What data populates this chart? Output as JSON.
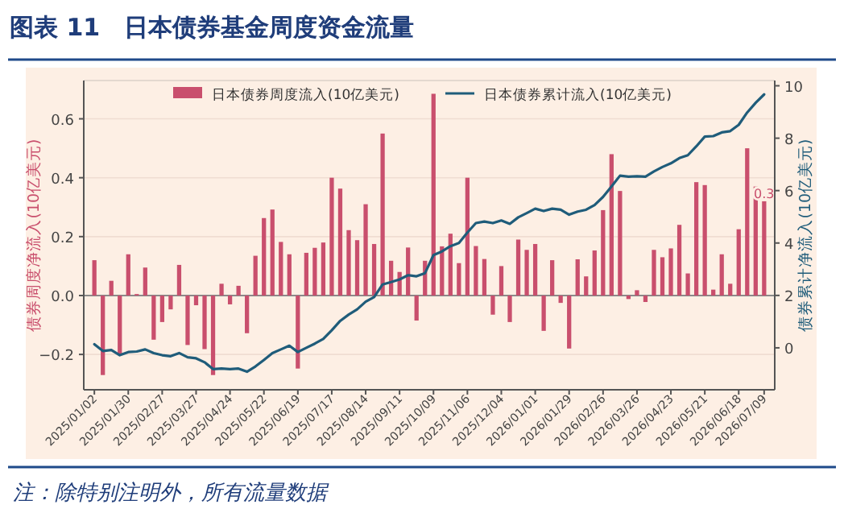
{
  "chart_data": {
    "type": "bar",
    "title": "图表 11　日本债券基金周度资金流量",
    "categories": [
      "2025/01/02",
      null,
      null,
      null,
      "2025/01/30",
      null,
      null,
      null,
      "2025/02/27",
      null,
      null,
      null,
      "2025/03/27",
      null,
      null,
      null,
      "2025/04/24",
      null,
      null,
      null,
      "2025/05/22",
      null,
      null,
      null,
      "2025/06/19",
      null,
      null,
      null,
      "2025/07/17",
      null,
      null,
      null,
      "2025/08/14",
      null,
      null,
      null,
      "2025/09/11",
      null,
      null,
      null,
      "2025/10/09",
      null,
      null,
      null,
      "2025/11/06",
      null,
      null,
      null,
      "2025/12/04",
      null,
      null,
      null,
      "2026/01/01",
      null,
      null,
      null,
      "2026/01/29",
      null,
      null,
      null,
      "2026/02/26",
      null,
      null,
      null,
      "2026/03/26",
      null,
      null,
      null,
      "2026/04/23",
      null,
      null,
      null,
      "2026/05/21",
      null,
      null,
      null,
      "2026/06/18",
      null,
      null,
      "2026/07/09"
    ],
    "series": [
      {
        "name": "日本债券周度流入(10亿美元)",
        "color": "#c94f6d",
        "values": [
          0.12,
          -0.27,
          0.05,
          -0.2,
          0.14,
          0.005,
          0.095,
          -0.15,
          -0.09,
          -0.047,
          0.104,
          -0.168,
          -0.033,
          -0.182,
          -0.27,
          0.04,
          -0.03,
          0.033,
          -0.128,
          0.135,
          0.263,
          0.292,
          0.182,
          0.14,
          -0.248,
          0.145,
          0.162,
          0.18,
          0.4,
          0.363,
          0.222,
          0.188,
          0.31,
          0.175,
          0.55,
          0.118,
          0.08,
          0.163,
          -0.085,
          0.118,
          0.685,
          0.167,
          0.21,
          0.11,
          0.4,
          0.168,
          0.124,
          -0.065,
          0.1,
          -0.09,
          0.19,
          0.155,
          0.175,
          -0.12,
          0.12,
          -0.025,
          -0.18,
          0.123,
          0.065,
          0.153,
          0.29,
          0.48,
          0.355,
          -0.012,
          0.018,
          -0.022,
          0.155,
          0.13,
          0.16,
          0.24,
          0.075,
          0.385,
          0.375,
          0.02,
          0.14,
          0.04,
          0.225,
          0.5,
          0.37,
          0.32
        ],
        "value_labels": [
          null,
          null,
          null,
          null,
          null,
          null,
          null,
          null,
          null,
          null,
          null,
          null,
          null,
          null,
          null,
          null,
          null,
          null,
          null,
          null,
          null,
          null,
          null,
          null,
          null,
          null,
          null,
          null,
          null,
          null,
          null,
          null,
          null,
          null,
          null,
          null,
          null,
          null,
          null,
          null,
          null,
          null,
          null,
          null,
          null,
          null,
          null,
          null,
          null,
          null,
          null,
          null,
          null,
          null,
          null,
          null,
          null,
          null,
          null,
          null,
          null,
          null,
          null,
          null,
          null,
          null,
          null,
          null,
          null,
          null,
          null,
          null,
          null,
          null,
          null,
          null,
          null,
          null,
          null,
          "0.3"
        ]
      },
      {
        "name": "日本债券累计流入(10亿美元)",
        "type": "line",
        "axis": "y2",
        "color": "#1f5c7a",
        "values": [
          0.14,
          -0.12,
          -0.08,
          -0.28,
          -0.16,
          -0.14,
          -0.06,
          -0.2,
          -0.28,
          -0.32,
          -0.2,
          -0.36,
          -0.4,
          -0.55,
          -0.81,
          -0.79,
          -0.81,
          -0.79,
          -0.91,
          -0.71,
          -0.46,
          -0.2,
          -0.06,
          0.08,
          -0.16,
          0.0,
          0.16,
          0.34,
          0.67,
          1.03,
          1.27,
          1.47,
          1.76,
          1.94,
          2.42,
          2.51,
          2.61,
          2.77,
          2.73,
          2.85,
          3.54,
          3.68,
          3.88,
          4.0,
          4.4,
          4.76,
          4.82,
          4.76,
          4.86,
          4.73,
          4.98,
          5.14,
          5.31,
          5.22,
          5.31,
          5.27,
          5.08,
          5.2,
          5.27,
          5.45,
          5.76,
          6.16,
          6.57,
          6.53,
          6.55,
          6.53,
          6.73,
          6.9,
          7.04,
          7.24,
          7.35,
          7.69,
          8.06,
          8.08,
          8.22,
          8.27,
          8.51,
          8.98,
          9.35,
          9.67
        ]
      }
    ],
    "ylabel": "债券周度净流入(10亿美元)",
    "y2label": "债券累计净流入(10亿美元)",
    "ylim": [
      -0.32,
      0.73
    ],
    "yticks": [
      {
        "value": -0.2,
        "label": "−0.2"
      },
      {
        "value": 0,
        "label": "0.0"
      },
      0.2,
      0.4,
      0.6
    ],
    "y2lim": [
      -1.6,
      10.2
    ],
    "y2ticks": [
      0,
      2,
      4,
      6,
      8,
      10
    ],
    "grid": "y",
    "legend": "top",
    "ref_lines": [
      {
        "axis": "y",
        "value": 0,
        "color": "#8a8a8a"
      }
    ],
    "annotations": [
      "注：除特别注明外，所有流量数据"
    ]
  }
}
